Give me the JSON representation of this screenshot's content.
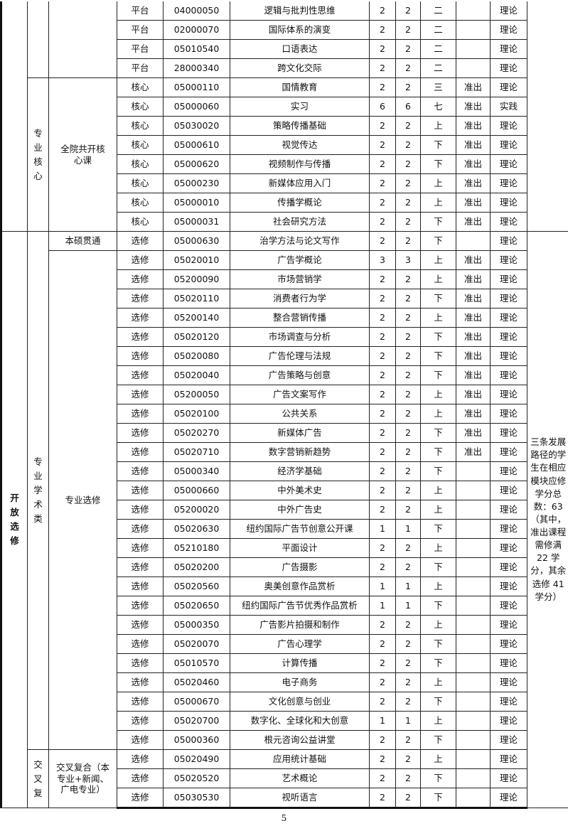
{
  "groups": {
    "zhuanye_hexin": "专业核心",
    "quanyuan_hexin": "全院共开核心课",
    "kaifang_xuanxiu": "开放选修",
    "zhuanye_xueshu": "专业学术类",
    "benshuo": "本硕贯通",
    "zhuanye_xuanxiu": "专业选修",
    "jiaocha": "交叉复",
    "jiaocha_fuhe": "交叉复合（本专业+新闻、广电专业）"
  },
  "note": "三条发展路径的学生在相应模块应修学分总数：63（其中，准出课程需修满 22 学分，其余选修 41 学分）",
  "rows": [
    [
      "平台",
      "04000050",
      "逻辑与批判性思维",
      "2",
      "2",
      "二",
      "",
      "理论"
    ],
    [
      "平台",
      "02000070",
      "国际体系的演变",
      "2",
      "2",
      "二",
      "",
      "理论"
    ],
    [
      "平台",
      "05010540",
      "口语表达",
      "2",
      "2",
      "二",
      "",
      "理论"
    ],
    [
      "平台",
      "28000340",
      "跨文化交际",
      "2",
      "2",
      "二",
      "",
      "理论"
    ],
    [
      "核心",
      "05000110",
      "国情教育",
      "2",
      "2",
      "三",
      "准出",
      "理论"
    ],
    [
      "核心",
      "05000060",
      "实习",
      "6",
      "6",
      "七",
      "准出",
      "实践"
    ],
    [
      "核心",
      "05030020",
      "策略传播基础",
      "2",
      "2",
      "上",
      "准出",
      "理论"
    ],
    [
      "核心",
      "05000610",
      "视觉传达",
      "2",
      "2",
      "下",
      "准出",
      "理论"
    ],
    [
      "核心",
      "05000620",
      "视频制作与传播",
      "2",
      "2",
      "下",
      "准出",
      "理论"
    ],
    [
      "核心",
      "05000230",
      "新媒体应用入门",
      "2",
      "2",
      "上",
      "准出",
      "理论"
    ],
    [
      "核心",
      "05000010",
      "传播学概论",
      "2",
      "2",
      "上",
      "准出",
      "理论"
    ],
    [
      "核心",
      "05000031",
      "社会研究方法",
      "2",
      "2",
      "下",
      "准出",
      "理论"
    ],
    [
      "选修",
      "05000630",
      "治学方法与论文写作",
      "2",
      "2",
      "下",
      "",
      "理论"
    ],
    [
      "选修",
      "05020010",
      "广告学概论",
      "3",
      "3",
      "上",
      "准出",
      "理论"
    ],
    [
      "选修",
      "05200090",
      "市场营销学",
      "2",
      "2",
      "上",
      "准出",
      "理论"
    ],
    [
      "选修",
      "05020110",
      "消费者行为学",
      "2",
      "2",
      "下",
      "准出",
      "理论"
    ],
    [
      "选修",
      "05200140",
      "整合营销传播",
      "2",
      "2",
      "上",
      "准出",
      "理论"
    ],
    [
      "选修",
      "05020120",
      "市场调查与分析",
      "2",
      "2",
      "下",
      "准出",
      "理论"
    ],
    [
      "选修",
      "05020080",
      "广告伦理与法规",
      "2",
      "2",
      "下",
      "准出",
      "理论"
    ],
    [
      "选修",
      "05020040",
      "广告策略与创意",
      "2",
      "2",
      "下",
      "准出",
      "理论"
    ],
    [
      "选修",
      "05200050",
      "广告文案写作",
      "2",
      "2",
      "上",
      "准出",
      "理论"
    ],
    [
      "选修",
      "05020100",
      "公共关系",
      "2",
      "2",
      "上",
      "准出",
      "理论"
    ],
    [
      "选修",
      "05020270",
      "新媒体广告",
      "2",
      "2",
      "下",
      "准出",
      "理论"
    ],
    [
      "选修",
      "05020710",
      "数字营销新趋势",
      "2",
      "2",
      "下",
      "准出",
      "理论"
    ],
    [
      "选修",
      "05000340",
      "经济学基础",
      "2",
      "2",
      "下",
      "",
      "理论"
    ],
    [
      "选修",
      "05000660",
      "中外美术史",
      "2",
      "2",
      "上",
      "",
      "理论"
    ],
    [
      "选修",
      "05200020",
      "中外广告史",
      "2",
      "2",
      "上",
      "",
      "理论"
    ],
    [
      "选修",
      "05020630",
      "纽约国际广告节创意公开课",
      "1",
      "1",
      "下",
      "",
      "理论"
    ],
    [
      "选修",
      "05210180",
      "平面设计",
      "2",
      "2",
      "上",
      "",
      "理论"
    ],
    [
      "选修",
      "05020200",
      "广告摄影",
      "2",
      "2",
      "下",
      "",
      "理论"
    ],
    [
      "选修",
      "05020560",
      "奥美创意作品赏析",
      "1",
      "1",
      "上",
      "",
      "理论"
    ],
    [
      "选修",
      "05020650",
      "纽约国际广告节优秀作品赏析",
      "1",
      "1",
      "下",
      "",
      "理论"
    ],
    [
      "选修",
      "05000350",
      "广告影片拍摄和制作",
      "2",
      "2",
      "上",
      "",
      "理论"
    ],
    [
      "选修",
      "05020070",
      "广告心理学",
      "2",
      "2",
      "下",
      "",
      "理论"
    ],
    [
      "选修",
      "05010570",
      "计算传播",
      "2",
      "2",
      "下",
      "",
      "理论"
    ],
    [
      "选修",
      "05020460",
      "电子商务",
      "2",
      "2",
      "上",
      "",
      "理论"
    ],
    [
      "选修",
      "05000670",
      "文化创意与创业",
      "2",
      "2",
      "下",
      "",
      "理论"
    ],
    [
      "选修",
      "05020700",
      "数字化、全球化和大创意",
      "1",
      "1",
      "上",
      "",
      "理论"
    ],
    [
      "选修",
      "05000360",
      "根元咨询公益讲堂",
      "2",
      "2",
      "下",
      "",
      "理论"
    ],
    [
      "选修",
      "05020490",
      "应用统计基础",
      "2",
      "2",
      "上",
      "",
      "理论"
    ],
    [
      "选修",
      "05020520",
      "艺术概论",
      "2",
      "2",
      "下",
      "",
      "理论"
    ],
    [
      "选修",
      "05030530",
      "视听语言",
      "2",
      "2",
      "下",
      "",
      "理论"
    ]
  ],
  "page_number": "5"
}
